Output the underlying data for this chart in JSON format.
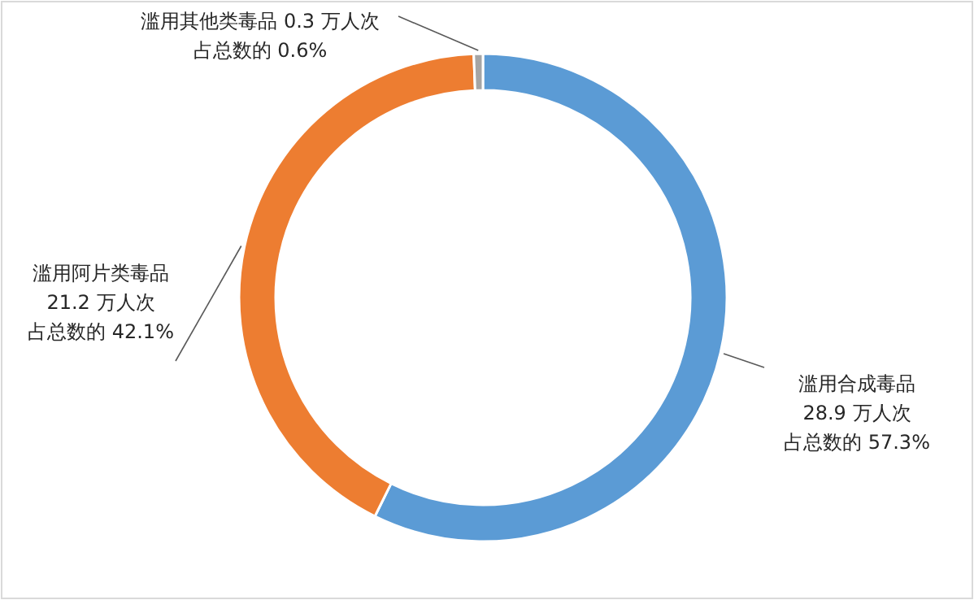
{
  "chart_data": {
    "type": "donut",
    "categories": [
      "滥用合成毒品",
      "滥用阿片类毒品",
      "滥用其他类毒品"
    ],
    "values": [
      57.3,
      42.1,
      0.6
    ],
    "colors": [
      "#5b9bd5",
      "#ed7d31",
      "#a5a5a5"
    ],
    "value_labels": [
      [
        "28.9 万人次",
        "占总数的 57.3%"
      ],
      [
        "21.2 万人次",
        "占总数的 42.1%"
      ],
      [
        "0.3 万人次",
        "占总数的 0.6%"
      ]
    ]
  }
}
